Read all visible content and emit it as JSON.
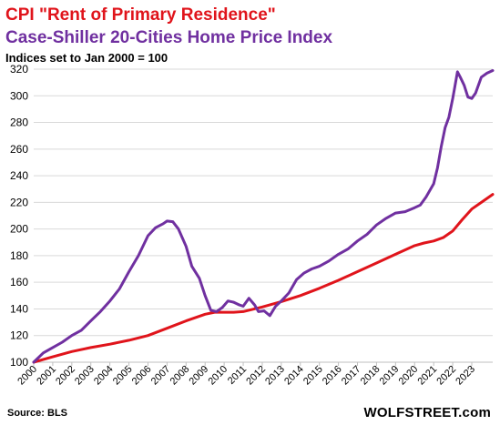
{
  "colors": {
    "rent": "#e0141b",
    "home_price": "#7030a0",
    "grid": "#d9d9d9",
    "axis": "#bfbfbf"
  },
  "titles": {
    "line1": "CPI \"Rent of Primary Residence\"",
    "line2": "Case-Shiller 20-Cities Home Price Index",
    "line3": "Indices set to Jan 2000 = 100"
  },
  "footer": {
    "source": "Source: BLS",
    "brand": "WOLFSTREET.com"
  },
  "chart_data": {
    "type": "line",
    "ylim": [
      100,
      320
    ],
    "yticks": [
      100,
      120,
      140,
      160,
      180,
      200,
      220,
      240,
      260,
      280,
      300,
      320
    ],
    "xlim": [
      2000,
      2024.1
    ],
    "xticks": [
      "2000",
      "2001",
      "2002",
      "2003",
      "2004",
      "2005",
      "2006",
      "2007",
      "2008",
      "2009",
      "2010",
      "2011",
      "2012",
      "2013",
      "2014",
      "2015",
      "2016",
      "2017",
      "2018",
      "2019",
      "2020",
      "2021",
      "2022",
      "2023"
    ],
    "grid": true,
    "series": [
      {
        "key": "rent",
        "x": [
          2000,
          2001,
          2002,
          2003,
          2004,
          2005,
          2006,
          2007,
          2008,
          2009,
          2009.5,
          2010,
          2010.5,
          2011,
          2012,
          2013,
          2014,
          2015,
          2016,
          2017,
          2018,
          2019,
          2020,
          2020.5,
          2021,
          2021.5,
          2022,
          2022.5,
          2023,
          2023.5,
          2024.1
        ],
        "y": [
          100,
          104,
          108,
          111,
          113.5,
          116.5,
          120,
          125.5,
          131,
          136,
          137.5,
          137.5,
          137.5,
          138,
          141.5,
          145.5,
          150,
          155.5,
          161.5,
          168,
          174.5,
          181,
          187.5,
          189.5,
          191,
          193.5,
          198.5,
          207,
          215,
          220,
          226
        ]
      },
      {
        "key": "home_price",
        "x": [
          2000,
          2000.5,
          2001,
          2001.5,
          2002,
          2002.5,
          2003,
          2003.5,
          2004,
          2004.5,
          2005,
          2005.5,
          2006,
          2006.4,
          2006.8,
          2007,
          2007.3,
          2007.6,
          2008,
          2008.3,
          2008.7,
          2009,
          2009.3,
          2009.6,
          2009.9,
          2010.2,
          2010.5,
          2010.8,
          2011,
          2011.3,
          2011.6,
          2011.8,
          2012.1,
          2012.4,
          2012.7,
          2013,
          2013.4,
          2013.8,
          2014.2,
          2014.6,
          2015,
          2015.5,
          2016,
          2016.5,
          2017,
          2017.5,
          2018,
          2018.5,
          2019,
          2019.5,
          2020,
          2020.3,
          2020.6,
          2021,
          2021.2,
          2021.4,
          2021.6,
          2021.8,
          2022,
          2022.1,
          2022.25,
          2022.4,
          2022.6,
          2022.8,
          2023,
          2023.2,
          2023.5,
          2023.8,
          2024.1
        ],
        "y": [
          100,
          107,
          111,
          115,
          120,
          124,
          131,
          138,
          146,
          155,
          168,
          180,
          195,
          201,
          204,
          206,
          205.5,
          200,
          187,
          172,
          163,
          150,
          139,
          138,
          141,
          146,
          145,
          143,
          142,
          148,
          143,
          138,
          138.5,
          135,
          142,
          146,
          152,
          162,
          167,
          170,
          172,
          176,
          181,
          185,
          191,
          196,
          203,
          208,
          212,
          213,
          216,
          218,
          224,
          234,
          246,
          262,
          276,
          284,
          298,
          306,
          318,
          314,
          308,
          299,
          298,
          302,
          314,
          317,
          319
        ]
      }
    ]
  }
}
